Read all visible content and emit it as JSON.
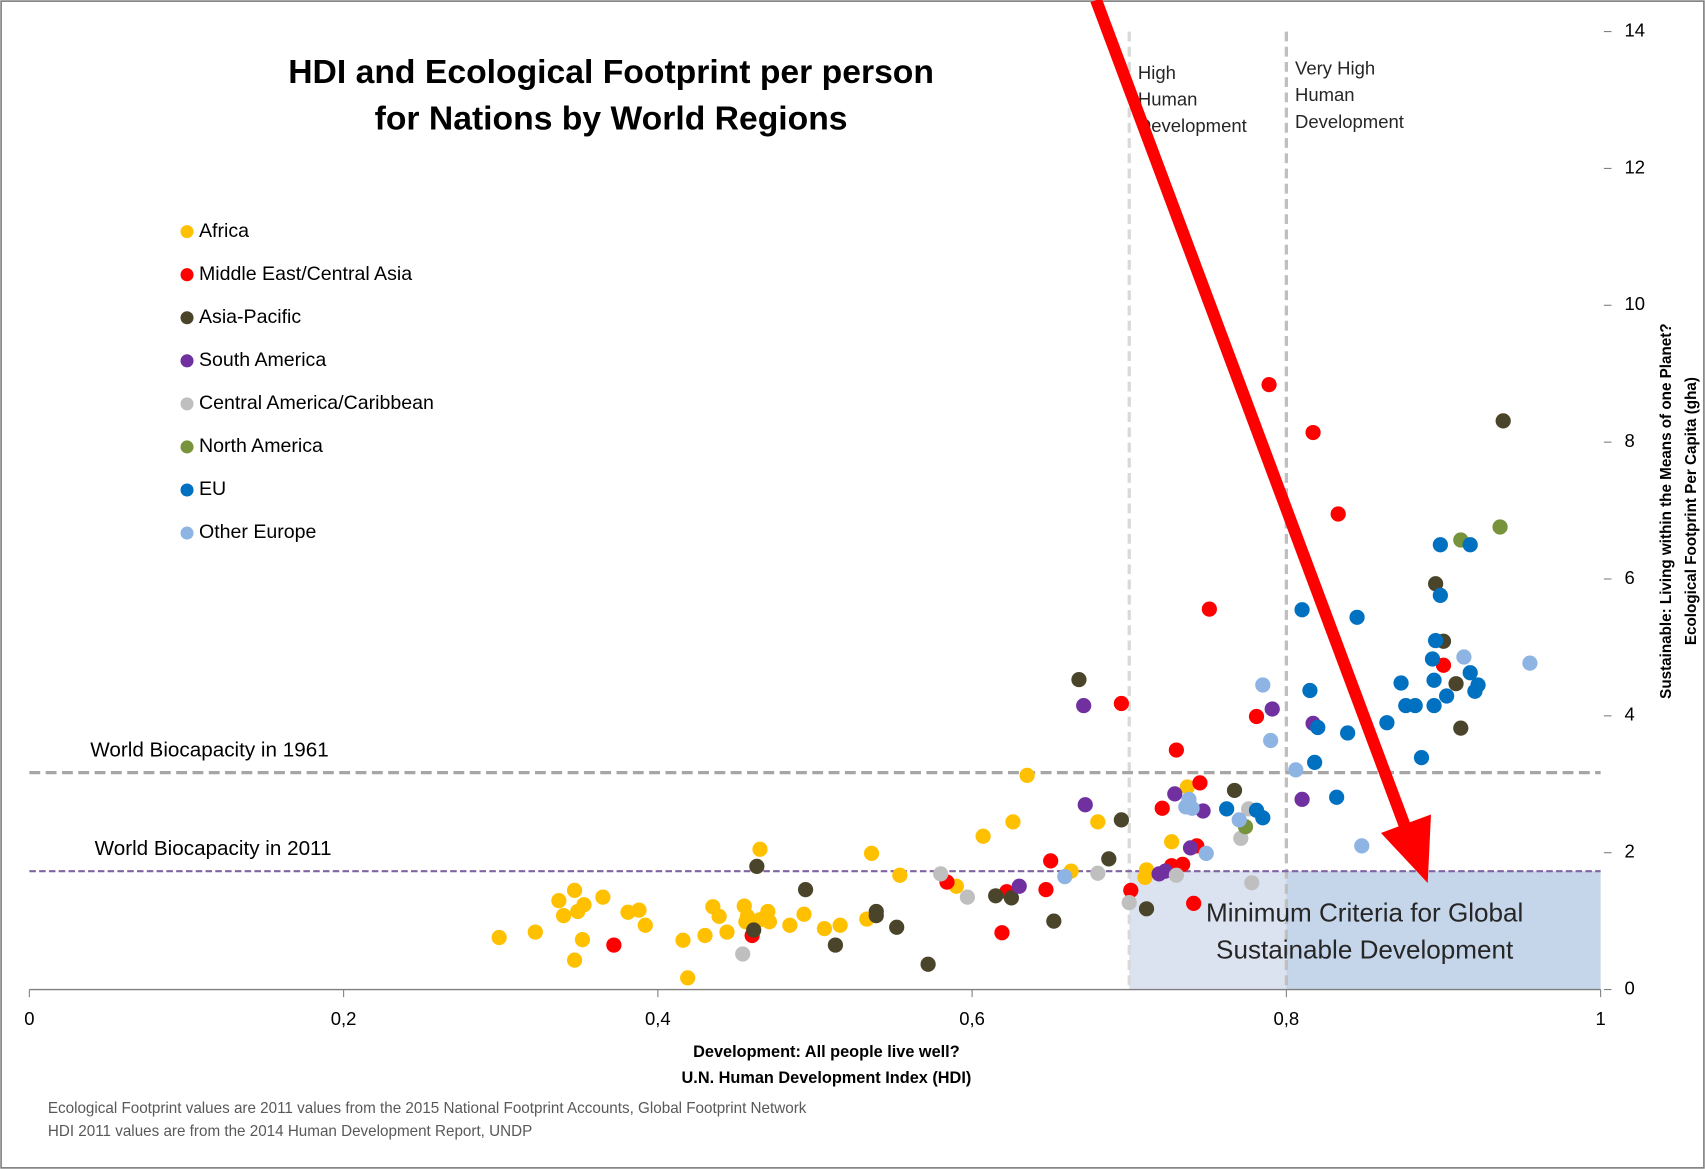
{
  "chart_data": {
    "type": "scatter",
    "title": [
      "HDI and Ecological Footprint per person",
      "for Nations by World Regions"
    ],
    "x_label": [
      "Development: All people live well?",
      "U.N. Human Development Index  (HDI)"
    ],
    "y_label": [
      "Sustainable: Living within the Means of one Planet?",
      "Ecological Footprint Per Capita (gha)"
    ],
    "xlim": [
      0,
      1
    ],
    "ylim": [
      0,
      14
    ],
    "xticks": [
      0,
      {
        "value": 0.2,
        "label": "0,2"
      },
      {
        "value": 0.4,
        "label": "0,4"
      },
      {
        "value": 0.6,
        "label": "0,6"
      },
      {
        "value": 0.8,
        "label": "0,8"
      },
      1
    ],
    "yticks": [
      0,
      2,
      4,
      6,
      8,
      10,
      12,
      14
    ],
    "legend": "upper left",
    "reference_lines": [
      {
        "value": 3.17,
        "label": "World Biocapacity in 1961",
        "color": "#a6a6a6"
      },
      {
        "value": 1.73,
        "label": "World Biocapacity in 2011",
        "color": "#8064a2"
      }
    ],
    "vertical_lines": [
      {
        "value": 0.7,
        "label": [
          "High",
          "Human",
          "Development"
        ],
        "color": "#d9d9d9"
      },
      {
        "value": 0.8,
        "label": [
          "Very High",
          "Human",
          "Development"
        ],
        "color": "#bfbfbf"
      }
    ],
    "annotation": [
      "Minimum Criteria for Global",
      "Sustainable Development"
    ],
    "notes": [
      "Ecological Footprint values are 2011 values from the 2015 National Footprint Accounts, Global Footprint Network",
      "HDI 2011 values are from the 2014 Human Development Report, UNDP"
    ],
    "series": [
      {
        "name": "Africa",
        "color": "#ffc000",
        "x": [
          0.299,
          0.322,
          0.337,
          0.34,
          0.347,
          0.349,
          0.353,
          0.352,
          0.347,
          0.365,
          0.381,
          0.388,
          0.392,
          0.416,
          0.419,
          0.43,
          0.435,
          0.439,
          0.444,
          0.455,
          0.456,
          0.457,
          0.465,
          0.465,
          0.47,
          0.471,
          0.484,
          0.493,
          0.506,
          0.516,
          0.533,
          0.536,
          0.554,
          0.59,
          0.607,
          0.626,
          0.635,
          0.663,
          0.68,
          0.711,
          0.71,
          0.727,
          0.737
        ],
        "values": [
          0.76,
          0.84,
          1.3,
          1.08,
          1.45,
          1.14,
          1.24,
          0.73,
          0.43,
          1.35,
          1.13,
          1.16,
          0.94,
          0.72,
          0.17,
          0.79,
          1.21,
          1.07,
          0.84,
          1.22,
          0.99,
          1.07,
          2.05,
          1.02,
          1.14,
          0.99,
          0.94,
          1.1,
          0.89,
          0.94,
          1.03,
          1.99,
          1.67,
          1.51,
          2.24,
          2.45,
          3.13,
          1.73,
          2.45,
          1.75,
          1.64,
          2.16,
          2.96
        ]
      },
      {
        "name": "Middle East/Central Asia",
        "color": "#ff0000",
        "x": [
          0.372,
          0.46,
          0.584,
          0.619,
          0.622,
          0.647,
          0.65,
          0.695,
          0.701,
          0.721,
          0.727,
          0.73,
          0.734,
          0.741,
          0.743,
          0.745,
          0.751,
          0.781,
          0.789,
          0.817,
          0.833,
          0.9
        ],
        "values": [
          0.65,
          0.79,
          1.57,
          0.83,
          1.43,
          1.46,
          1.88,
          4.18,
          1.45,
          2.65,
          1.81,
          3.5,
          1.83,
          1.26,
          2.1,
          3.02,
          5.56,
          3.99,
          8.84,
          8.14,
          6.95,
          4.74
        ]
      },
      {
        "name": "Asia-Pacific",
        "color": "#4a452a",
        "x": [
          0.461,
          0.463,
          0.494,
          0.513,
          0.539,
          0.539,
          0.552,
          0.572,
          0.615,
          0.625,
          0.652,
          0.668,
          0.687,
          0.695,
          0.711,
          0.767,
          0.895,
          0.9,
          0.908,
          0.911,
          0.938
        ],
        "values": [
          0.87,
          1.8,
          1.46,
          0.65,
          1.14,
          1.08,
          0.91,
          0.37,
          1.37,
          1.34,
          1.0,
          4.53,
          1.91,
          2.48,
          1.18,
          2.91,
          5.93,
          5.09,
          4.47,
          3.82,
          8.31
        ]
      },
      {
        "name": "South America",
        "color": "#7030a0",
        "x": [
          0.63,
          0.671,
          0.672,
          0.719,
          0.723,
          0.729,
          0.739,
          0.747,
          0.791,
          0.81,
          0.817
        ],
        "values": [
          1.51,
          4.15,
          2.7,
          1.69,
          1.73,
          2.86,
          2.07,
          2.61,
          4.1,
          2.78,
          3.89
        ]
      },
      {
        "name": "Central America/Caribbean",
        "color": "#bfbfbf",
        "x": [
          0.454,
          0.58,
          0.597,
          0.68,
          0.7,
          0.73,
          0.771,
          0.778,
          0.776
        ],
        "values": [
          0.52,
          1.69,
          1.35,
          1.7,
          1.27,
          1.67,
          2.21,
          1.56,
          2.64
        ]
      },
      {
        "name": "North America",
        "color": "#77933c",
        "x": [
          0.774,
          0.911,
          0.936
        ],
        "values": [
          2.38,
          6.57,
          6.76
        ]
      },
      {
        "name": "EU",
        "color": "#0070c0",
        "x": [
          0.762,
          0.781,
          0.785,
          0.81,
          0.815,
          0.818,
          0.82,
          0.832,
          0.839,
          0.845,
          0.864,
          0.873,
          0.876,
          0.882,
          0.886,
          0.893,
          0.894,
          0.894,
          0.895,
          0.898,
          0.898,
          0.902,
          0.917,
          0.917,
          0.92,
          0.922
        ],
        "values": [
          2.64,
          2.62,
          2.51,
          5.55,
          4.37,
          3.32,
          3.83,
          2.81,
          3.75,
          5.44,
          3.9,
          4.48,
          4.15,
          4.15,
          3.39,
          4.83,
          4.52,
          4.15,
          5.1,
          6.5,
          5.76,
          4.29,
          6.5,
          4.63,
          4.36,
          4.45
        ]
      },
      {
        "name": "Other Europe",
        "color": "#8db4e2",
        "x": [
          0.659,
          0.736,
          0.738,
          0.74,
          0.749,
          0.77,
          0.785,
          0.79,
          0.806,
          0.848,
          0.913,
          0.955
        ],
        "values": [
          1.65,
          2.67,
          2.78,
          2.65,
          1.99,
          2.48,
          4.45,
          3.64,
          3.21,
          2.1,
          4.86,
          4.77
        ]
      }
    ]
  }
}
